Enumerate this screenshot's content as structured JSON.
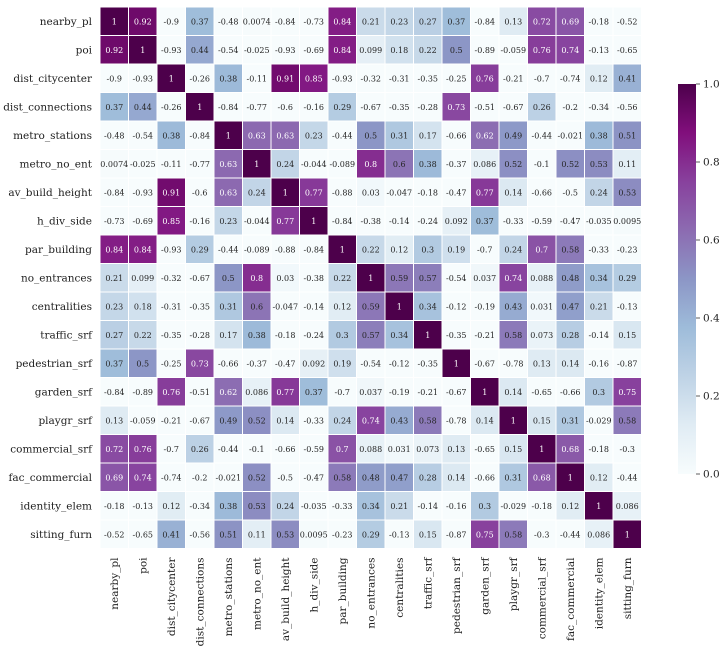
{
  "chart_data": {
    "type": "heatmap",
    "colormap": "BuPu",
    "vmin": 0.0,
    "vmax": 1.0,
    "colorbar_ticks": [
      "0.0",
      "0.2",
      "0.4",
      "0.6",
      "0.8",
      "1.0"
    ],
    "row_labels": [
      "nearby_pl",
      "poi",
      "dist_citycenter",
      "dist_connections",
      "metro_stations",
      "metro_no_ent",
      "av_build_height",
      "h_div_side",
      "par_building",
      "no_entrances",
      "centralities",
      "traffic_srf",
      "pedestrian_srf",
      "garden_srf",
      "playgr_srf",
      "commercial_srf",
      "fac_commercial",
      "identity_elem",
      "sitting_furn"
    ],
    "col_labels": [
      "nearby_pl",
      "poi",
      "dist_citycenter",
      "dist_connections",
      "metro_stations",
      "metro_no_ent",
      "av_build_height",
      "h_div_side",
      "par_building",
      "no_entrances",
      "centralities",
      "traffic_srf",
      "pedestrian_srf",
      "garden_srf",
      "playgr_srf",
      "commercial_srf",
      "fac_commercial",
      "identity_elem",
      "sitting_furn"
    ],
    "cells": [
      [
        "1",
        "0.92",
        "-0.9",
        "0.37",
        "-0.48",
        "0.0074",
        "-0.84",
        "-0.73",
        "0.84",
        "0.21",
        "0.23",
        "0.27",
        "0.37",
        "-0.84",
        "0.13",
        "0.72",
        "0.69",
        "-0.18",
        "-0.52"
      ],
      [
        "0.92",
        "1",
        "-0.93",
        "0.44",
        "-0.54",
        "-0.025",
        "-0.93",
        "-0.69",
        "0.84",
        "0.099",
        "0.18",
        "0.22",
        "0.5",
        "-0.89",
        "-0.059",
        "0.76",
        "0.74",
        "-0.13",
        "-0.65"
      ],
      [
        "-0.9",
        "-0.93",
        "1",
        "-0.26",
        "0.38",
        "-0.11",
        "0.91",
        "0.85",
        "-0.93",
        "-0.32",
        "-0.31",
        "-0.35",
        "-0.25",
        "0.76",
        "-0.21",
        "-0.7",
        "-0.74",
        "0.12",
        "0.41"
      ],
      [
        "0.37",
        "0.44",
        "-0.26",
        "1",
        "-0.84",
        "-0.77",
        "-0.6",
        "-0.16",
        "0.29",
        "-0.67",
        "-0.35",
        "-0.28",
        "0.73",
        "-0.51",
        "-0.67",
        "0.26",
        "-0.2",
        "-0.34",
        "-0.56"
      ],
      [
        "-0.48",
        "-0.54",
        "0.38",
        "-0.84",
        "1",
        "0.63",
        "0.63",
        "0.23",
        "-0.44",
        "0.5",
        "0.31",
        "0.17",
        "-0.66",
        "0.62",
        "0.49",
        "-0.44",
        "-0.021",
        "0.38",
        "0.51"
      ],
      [
        "0.0074",
        "-0.025",
        "-0.11",
        "-0.77",
        "0.63",
        "1",
        "0.24",
        "-0.044",
        "-0.089",
        "0.8",
        "0.6",
        "0.38",
        "-0.37",
        "0.086",
        "0.52",
        "-0.1",
        "0.52",
        "0.53",
        "0.11"
      ],
      [
        "-0.84",
        "-0.93",
        "0.91",
        "-0.6",
        "0.63",
        "0.24",
        "1",
        "0.77",
        "-0.88",
        "0.03",
        "-0.047",
        "-0.18",
        "-0.47",
        "0.77",
        "0.14",
        "-0.66",
        "-0.5",
        "0.24",
        "0.53"
      ],
      [
        "-0.73",
        "-0.69",
        "0.85",
        "-0.16",
        "0.23",
        "-0.044",
        "0.77",
        "1",
        "-0.84",
        "-0.38",
        "-0.14",
        "-0.24",
        "0.092",
        "0.37",
        "-0.33",
        "-0.59",
        "-0.47",
        "-0.035",
        "0.0095"
      ],
      [
        "0.84",
        "0.84",
        "-0.93",
        "0.29",
        "-0.44",
        "-0.089",
        "-0.88",
        "-0.84",
        "1",
        "0.22",
        "0.12",
        "0.3",
        "0.19",
        "-0.7",
        "0.24",
        "0.7",
        "0.58",
        "-0.33",
        "-0.23"
      ],
      [
        "0.21",
        "0.099",
        "-0.32",
        "-0.67",
        "0.5",
        "0.8",
        "0.03",
        "-0.38",
        "0.22",
        "1",
        "0.59",
        "0.57",
        "-0.54",
        "0.037",
        "0.74",
        "0.088",
        "0.48",
        "0.34",
        "0.29"
      ],
      [
        "0.23",
        "0.18",
        "-0.31",
        "-0.35",
        "0.31",
        "0.6",
        "-0.047",
        "-0.14",
        "0.12",
        "0.59",
        "1",
        "0.34",
        "-0.12",
        "-0.19",
        "0.43",
        "0.031",
        "0.47",
        "0.21",
        "-0.13"
      ],
      [
        "0.27",
        "0.22",
        "-0.35",
        "-0.28",
        "0.17",
        "0.38",
        "-0.18",
        "-0.24",
        "0.3",
        "0.57",
        "0.34",
        "1",
        "-0.35",
        "-0.21",
        "0.58",
        "0.073",
        "0.28",
        "-0.14",
        "0.15"
      ],
      [
        "0.37",
        "0.5",
        "-0.25",
        "0.73",
        "-0.66",
        "-0.37",
        "-0.47",
        "0.092",
        "0.19",
        "-0.54",
        "-0.12",
        "-0.35",
        "1",
        "-0.67",
        "-0.78",
        "0.13",
        "0.14",
        "-0.16",
        "-0.87"
      ],
      [
        "-0.84",
        "-0.89",
        "0.76",
        "-0.51",
        "0.62",
        "0.086",
        "0.77",
        "0.37",
        "-0.7",
        "0.037",
        "-0.19",
        "-0.21",
        "-0.67",
        "1",
        "0.14",
        "-0.65",
        "-0.66",
        "0.3",
        "0.75"
      ],
      [
        "0.13",
        "-0.059",
        "-0.21",
        "-0.67",
        "0.49",
        "0.52",
        "0.14",
        "-0.33",
        "0.24",
        "0.74",
        "0.43",
        "0.58",
        "-0.78",
        "0.14",
        "1",
        "0.15",
        "0.31",
        "-0.029",
        "0.58"
      ],
      [
        "0.72",
        "0.76",
        "-0.7",
        "0.26",
        "-0.44",
        "-0.1",
        "-0.66",
        "-0.59",
        "0.7",
        "0.088",
        "0.031",
        "0.073",
        "0.13",
        "-0.65",
        "0.15",
        "1",
        "0.68",
        "-0.18",
        "-0.3"
      ],
      [
        "0.69",
        "0.74",
        "-0.74",
        "-0.2",
        "-0.021",
        "0.52",
        "-0.5",
        "-0.47",
        "0.58",
        "0.48",
        "0.47",
        "0.28",
        "0.14",
        "-0.66",
        "0.31",
        "0.68",
        "1",
        "0.12",
        "-0.44"
      ],
      [
        "-0.18",
        "-0.13",
        "0.12",
        "-0.34",
        "0.38",
        "0.53",
        "0.24",
        "-0.035",
        "-0.33",
        "0.34",
        "0.21",
        "-0.14",
        "-0.16",
        "0.3",
        "-0.029",
        "-0.18",
        "0.12",
        "1",
        "0.086"
      ],
      [
        "-0.52",
        "-0.65",
        "0.41",
        "-0.56",
        "0.51",
        "0.11",
        "0.53",
        "0.0095",
        "-0.23",
        "0.29",
        "-0.13",
        "0.15",
        "-0.87",
        "0.75",
        "0.58",
        "-0.3",
        "-0.44",
        "0.086",
        "1"
      ]
    ]
  }
}
